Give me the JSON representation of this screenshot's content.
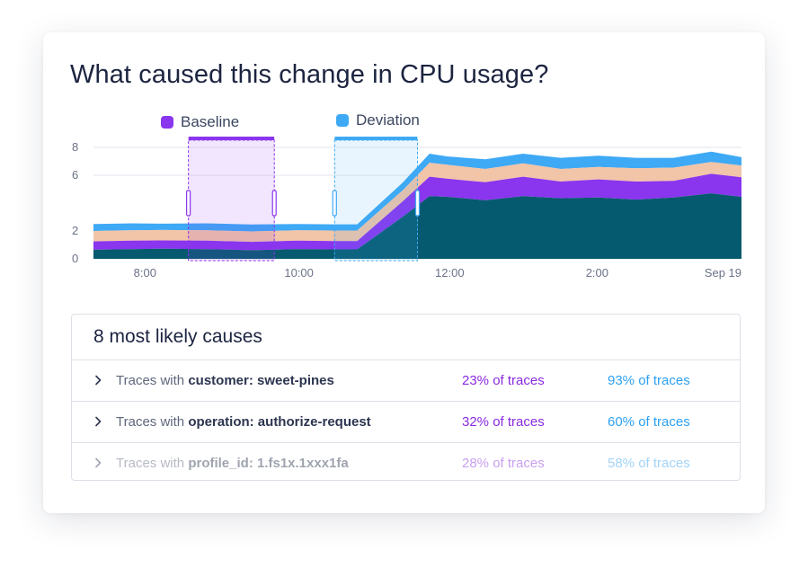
{
  "title": "What caused this change in CPU usage?",
  "colors": {
    "baseline": "#8a35ee",
    "deviation": "#3ea9f5",
    "layer_bottom": "#065a70",
    "layer_purple": "#8a35ee",
    "layer_peach": "#f2c4a8",
    "layer_top": "#3ea9f5"
  },
  "legend": {
    "baseline": "Baseline",
    "deviation": "Deviation"
  },
  "chart_data": {
    "type": "area",
    "stacked": true,
    "title": "What caused this change in CPU usage?",
    "xlabel": "",
    "ylabel": "",
    "ylim": [
      0,
      8
    ],
    "y_ticks": [
      0,
      2,
      6,
      8
    ],
    "x_range": [
      7.65,
      11.95
    ],
    "x_ticks": [
      {
        "value": 8.0,
        "label": "8:00"
      },
      {
        "value": 9.0,
        "label": "10:00"
      },
      {
        "value": 10.0,
        "label": "12:00"
      },
      {
        "value": 11.0,
        "label": "2:00"
      },
      {
        "value": 11.85,
        "label": "Sep 19"
      }
    ],
    "grid": true,
    "x": [
      7.65,
      7.9,
      8.1,
      8.4,
      8.7,
      9.0,
      9.25,
      9.4,
      9.7,
      9.88,
      10.0,
      10.25,
      10.5,
      10.75,
      11.0,
      11.25,
      11.5,
      11.75,
      11.95
    ],
    "series": [
      {
        "name": "base",
        "values": [
          0.65,
          0.7,
          0.72,
          0.7,
          0.62,
          0.7,
          0.68,
          0.68,
          3.0,
          4.5,
          4.45,
          4.2,
          4.5,
          4.35,
          4.4,
          4.25,
          4.4,
          4.7,
          4.45
        ]
      },
      {
        "name": "purple",
        "values": [
          0.6,
          0.6,
          0.6,
          0.6,
          0.6,
          0.6,
          0.6,
          0.6,
          1.1,
          1.4,
          1.3,
          1.3,
          1.4,
          1.2,
          1.3,
          1.3,
          1.2,
          1.4,
          1.4
        ]
      },
      {
        "name": "peach",
        "values": [
          0.75,
          0.75,
          0.75,
          0.75,
          0.75,
          0.75,
          0.75,
          0.75,
          0.8,
          1.0,
          1.0,
          0.95,
          0.95,
          0.9,
          0.9,
          0.95,
          0.95,
          0.85,
          0.85
        ]
      },
      {
        "name": "top",
        "values": [
          0.5,
          0.5,
          0.45,
          0.5,
          0.5,
          0.45,
          0.45,
          0.45,
          0.55,
          0.65,
          0.6,
          0.7,
          0.7,
          0.8,
          0.8,
          0.75,
          0.7,
          0.75,
          0.6
        ]
      }
    ],
    "selections": [
      {
        "name": "Baseline",
        "x_start": 8.28,
        "x_end": 8.85
      },
      {
        "name": "Deviation",
        "x_start": 9.25,
        "x_end": 9.8
      }
    ]
  },
  "causes": {
    "title": "8 most likely causes",
    "rows": [
      {
        "prefix": "Traces with",
        "key": "customer: sweet-pines",
        "baseline_pct": "23% of traces",
        "deviation_pct": "93% of traces"
      },
      {
        "prefix": "Traces with",
        "key": "operation: authorize-request",
        "baseline_pct": "32% of traces",
        "deviation_pct": "60% of traces"
      },
      {
        "prefix": "Traces with",
        "key": "profile_id: 1.fs1x.1xxx1fa",
        "baseline_pct": "28% of traces",
        "deviation_pct": "58% of traces"
      }
    ]
  }
}
